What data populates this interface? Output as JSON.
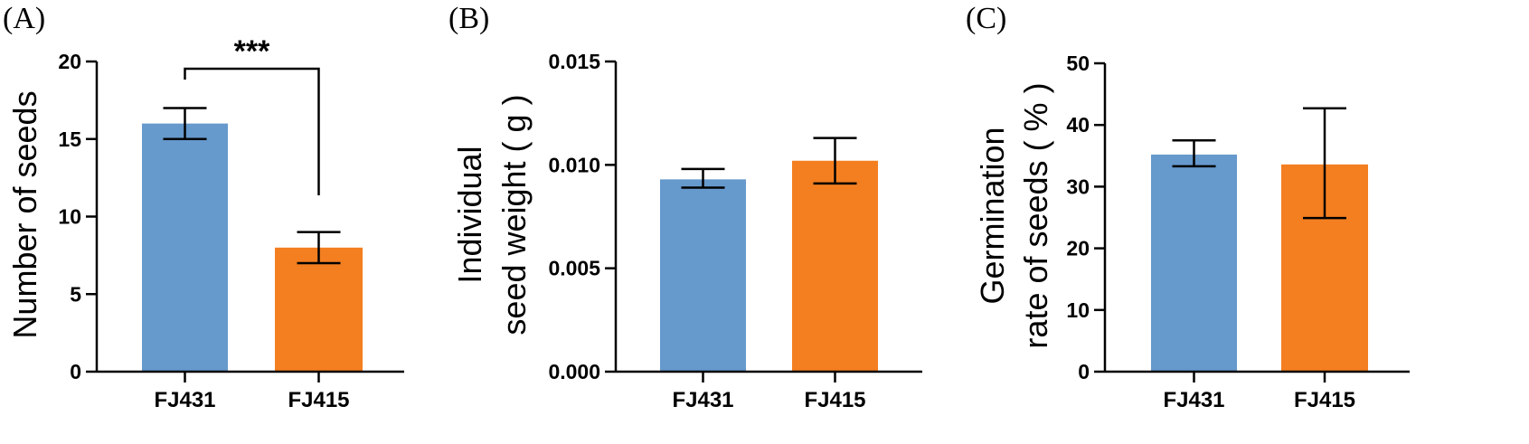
{
  "chart_data": [
    {
      "type": "bar",
      "panel_label": "(A)",
      "categories": [
        "FJ431",
        "FJ415"
      ],
      "values": [
        16,
        8
      ],
      "error_lower": [
        15,
        7
      ],
      "error_upper": [
        17,
        9
      ],
      "colors": [
        "#6699CC",
        "#F47F20"
      ],
      "ylabel": "Number of seeds",
      "ylabel_lines": [
        "Number of seeds"
      ],
      "ylim": [
        0,
        20
      ],
      "yticks": [
        0,
        5,
        10,
        15,
        20
      ],
      "ytick_labels": [
        "0",
        "5",
        "10",
        "15",
        "20"
      ],
      "significance": {
        "label": "***",
        "between": [
          0,
          1
        ]
      }
    },
    {
      "type": "bar",
      "panel_label": "(B)",
      "categories": [
        "FJ431",
        "FJ415"
      ],
      "values": [
        0.0093,
        0.0102
      ],
      "error_lower": [
        0.0089,
        0.0091
      ],
      "error_upper": [
        0.0098,
        0.0113
      ],
      "colors": [
        "#6699CC",
        "#F47F20"
      ],
      "ylabel": "Individual seed weight ( g )",
      "ylabel_lines": [
        "Individual",
        "seed weight ( g )"
      ],
      "ylim": [
        0,
        0.015
      ],
      "yticks": [
        0,
        0.005,
        0.01,
        0.015
      ],
      "ytick_labels": [
        "0.000",
        "0.005",
        "0.010",
        "0.015"
      ]
    },
    {
      "type": "bar",
      "panel_label": "(C)",
      "categories": [
        "FJ431",
        "FJ415"
      ],
      "values": [
        35.2,
        33.6
      ],
      "error_lower": [
        33.3,
        24.9
      ],
      "error_upper": [
        37.5,
        42.7
      ],
      "colors": [
        "#6699CC",
        "#F47F20"
      ],
      "ylabel": "Germination rate of seeds ( % )",
      "ylabel_lines": [
        "Germination",
        "rate of seeds ( % )"
      ],
      "ylim": [
        0,
        50
      ],
      "yticks": [
        0,
        10,
        20,
        30,
        40,
        50
      ],
      "ytick_labels": [
        "0",
        "10",
        "20",
        "30",
        "40",
        "50"
      ]
    }
  ]
}
